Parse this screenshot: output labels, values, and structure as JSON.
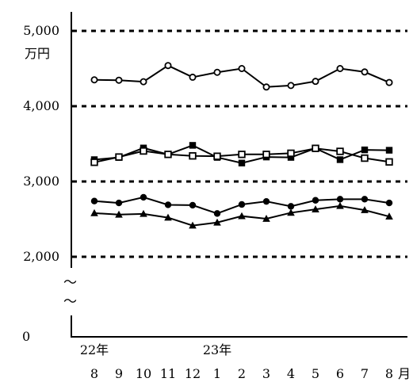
{
  "chart_data": {
    "type": "line",
    "title": "",
    "ylabel_unit": "万円",
    "ylim": [
      2000,
      5000
    ],
    "y_ticks": [
      {
        "value": 5000,
        "label": "5,000"
      },
      {
        "value": 4000,
        "label": "4,000"
      },
      {
        "value": 3000,
        "label": "3,000"
      },
      {
        "value": 2000,
        "label": "2,000"
      }
    ],
    "y_zero_label": "0",
    "axis_break_symbol": "〜",
    "grid": "dashed horizontal at 2,000 / 3,000 / 4,000 / 5,000",
    "categories": [
      "8",
      "9",
      "10",
      "11",
      "12",
      "1",
      "2",
      "3",
      "4",
      "5",
      "6",
      "7",
      "8"
    ],
    "x_unit_label": "月",
    "year_labels": [
      {
        "label": "22年",
        "at_index": 0
      },
      {
        "label": "23年",
        "at_index": 5
      }
    ],
    "series": [
      {
        "marker": "open-circle",
        "values": [
          4350,
          4345,
          4325,
          4540,
          4385,
          4450,
          4500,
          4255,
          4275,
          4330,
          4500,
          4455,
          4315
        ]
      },
      {
        "marker": "filled-square",
        "values": [
          3290,
          3320,
          3445,
          3360,
          3480,
          3320,
          3245,
          3325,
          3320,
          3440,
          3290,
          3420,
          3415
        ]
      },
      {
        "marker": "open-square",
        "values": [
          3255,
          3325,
          3405,
          3360,
          3340,
          3335,
          3360,
          3360,
          3375,
          3440,
          3400,
          3310,
          3260
        ]
      },
      {
        "marker": "filled-circle",
        "values": [
          2740,
          2715,
          2790,
          2690,
          2685,
          2575,
          2695,
          2735,
          2670,
          2750,
          2765,
          2765,
          2715
        ]
      },
      {
        "marker": "filled-triangle",
        "values": [
          2580,
          2560,
          2570,
          2520,
          2415,
          2455,
          2540,
          2505,
          2585,
          2630,
          2675,
          2620,
          2535
        ]
      }
    ]
  }
}
